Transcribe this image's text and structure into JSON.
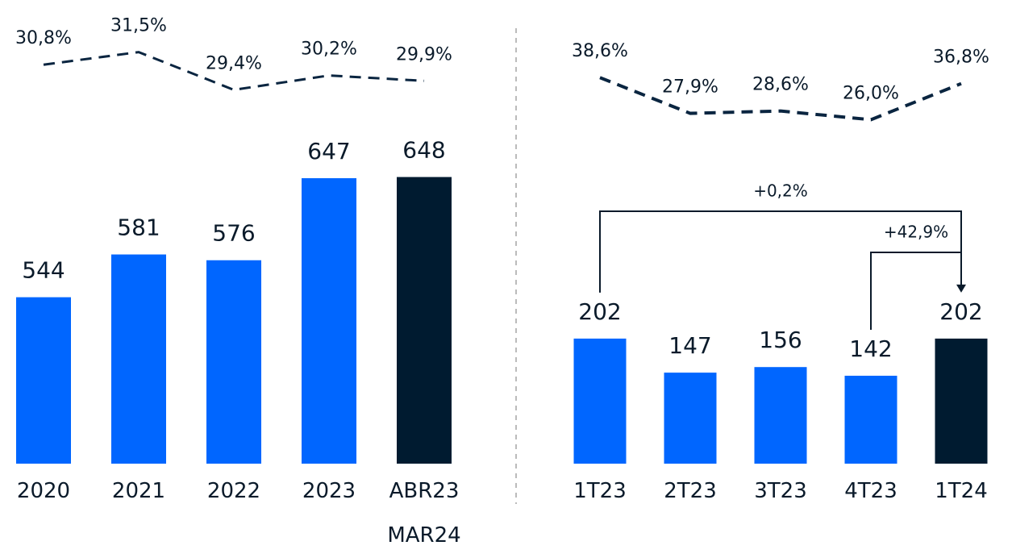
{
  "chart_data": [
    {
      "type": "bar",
      "categories": [
        "2020",
        "2021",
        "2022",
        "2023",
        "ABR23 MAR24"
      ],
      "values": [
        544,
        581,
        576,
        647,
        648
      ],
      "colors": [
        "#0066ff",
        "#0066ff",
        "#0066ff",
        "#0066ff",
        "#001b30"
      ],
      "ylim": [
        400,
        700
      ],
      "line": {
        "values": [
          30.8,
          31.5,
          29.4,
          30.2,
          29.9
        ],
        "value_labels": [
          "30,8%",
          "31,5%",
          "29,4%",
          "30,2%",
          "29,9%"
        ],
        "color": "#0a2540",
        "axis": "y2"
      },
      "y2lim": [
        27,
        33.5
      ]
    },
    {
      "type": "bar",
      "categories": [
        "1T23",
        "2T23",
        "3T23",
        "4T23",
        "1T24"
      ],
      "values": [
        202,
        147,
        156,
        142,
        202
      ],
      "colors": [
        "#0066ff",
        "#0066ff",
        "#0066ff",
        "#0066ff",
        "#001b30"
      ],
      "ylim": [
        0,
        560
      ],
      "line": {
        "values": [
          38.6,
          27.9,
          28.6,
          26.0,
          36.8
        ],
        "value_labels": [
          "38,6%",
          "27,9%",
          "28,6%",
          "26,0%",
          "36,8%"
        ],
        "color": "#0a2540",
        "axis": "y2"
      },
      "y2lim": [
        22,
        57
      ],
      "annotations": [
        {
          "text": "+0,2%",
          "from": 0,
          "to": 4
        },
        {
          "text": "+42,9%",
          "from": 3,
          "to": 4
        }
      ]
    }
  ]
}
